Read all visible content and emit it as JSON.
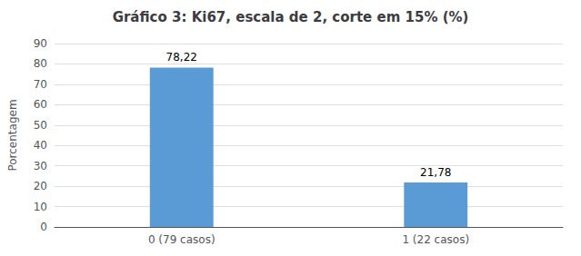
{
  "chart_data": {
    "type": "bar",
    "title": "Gráfico 3: Ki67, escala de 2, corte em 15% (%)",
    "categories": [
      "0 (79 casos)",
      "1 (22 casos)"
    ],
    "values": [
      78.22,
      21.78
    ],
    "value_labels": [
      "78,22",
      "21,78"
    ],
    "data_labels": true,
    "color": "#5B9BD5",
    "ylabel": "Porcentagem",
    "ylim": [
      0,
      90
    ],
    "yticks": [
      0,
      10,
      20,
      30,
      40,
      50,
      60,
      70,
      80,
      90
    ],
    "grid": true
  }
}
